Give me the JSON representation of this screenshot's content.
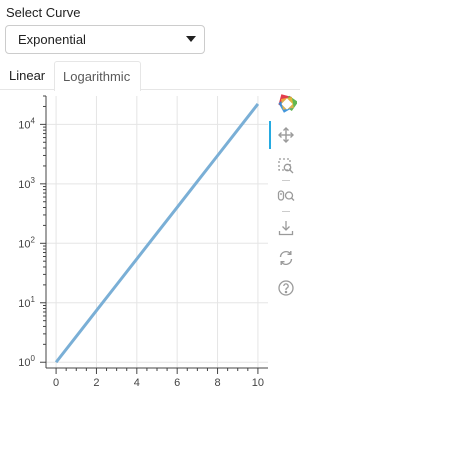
{
  "select": {
    "label": "Select Curve",
    "value": "Exponential"
  },
  "tabs": [
    {
      "label": "Linear",
      "active": false
    },
    {
      "label": "Logarithmic",
      "active": true
    }
  ],
  "toolbar": {
    "tools": [
      "bokeh-logo-icon",
      "pan-icon",
      "box-zoom-icon",
      "wheel-zoom-icon",
      "save-icon",
      "reset-icon",
      "help-icon"
    ],
    "active_tool": "pan-icon"
  },
  "colors": {
    "line": "#7aafd6",
    "grid": "#e5e5e5",
    "axis": "#444444",
    "active_tool": "#26aae1"
  },
  "chart_data": {
    "type": "line",
    "title": "",
    "xlabel": "",
    "ylabel": "",
    "y_scale": "log",
    "xlim": [
      -0.5,
      10.5
    ],
    "ylim": [
      0.8,
      30000
    ],
    "x_ticks": [
      0,
      2,
      4,
      6,
      8,
      10
    ],
    "x_tick_labels": [
      "0",
      "2",
      "4",
      "6",
      "8",
      "10"
    ],
    "y_ticks": [
      1,
      10,
      100,
      1000,
      10000
    ],
    "y_tick_labels": [
      {
        "base": "10",
        "exp": "0"
      },
      {
        "base": "10",
        "exp": "1"
      },
      {
        "base": "10",
        "exp": "2"
      },
      {
        "base": "10",
        "exp": "3"
      },
      {
        "base": "10",
        "exp": "4"
      }
    ],
    "grid": true,
    "x": [
      0,
      1,
      2,
      3,
      4,
      5,
      6,
      7,
      8,
      9,
      10
    ],
    "series": [
      {
        "values": [
          1,
          2.718,
          7.389,
          20.09,
          54.6,
          148.4,
          403.4,
          1097,
          2981,
          8103,
          22026
        ]
      }
    ]
  }
}
